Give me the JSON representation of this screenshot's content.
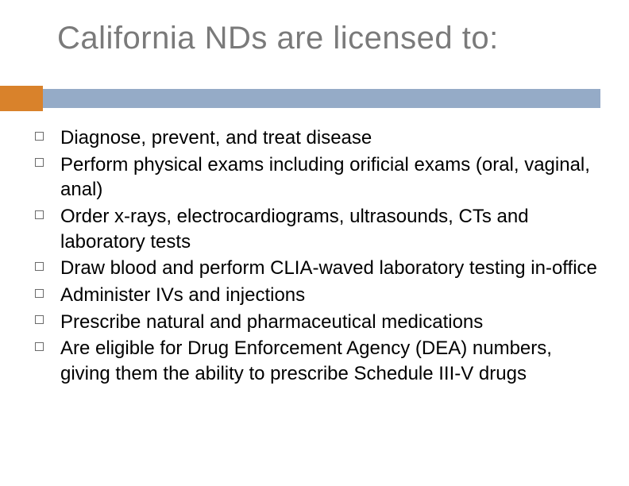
{
  "title": {
    "text": "California NDs are licensed to:",
    "color": "#7a7a7a",
    "fontsize": 40
  },
  "divider": {
    "accent_color": "#d9822b",
    "accent_width": 54,
    "bar_color": "#95abc7"
  },
  "body": {
    "text_color": "#000000",
    "fontsize": 24,
    "bullet_border_color": "#6b6b6b",
    "items": [
      "Diagnose, prevent, and treat disease",
      "Perform physical exams including orificial exams (oral, vaginal, anal)",
      "Order x-rays, electrocardiograms, ultrasounds, CTs and laboratory tests",
      "Draw blood and perform CLIA-waved laboratory testing in-office",
      "Administer IVs and injections",
      "Prescribe natural and pharmaceutical medications",
      "Are eligible for Drug Enforcement Agency (DEA) numbers, giving them the ability to prescribe Schedule III-V drugs"
    ]
  },
  "background_color": "#ffffff"
}
